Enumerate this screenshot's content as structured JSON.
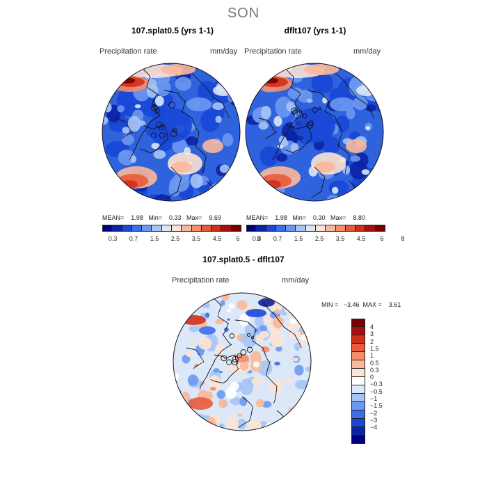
{
  "title": "SON",
  "colors": {
    "precip_scale": [
      "#00007f",
      "#0b24a4",
      "#1a47d6",
      "#3b6ee8",
      "#6c98f0",
      "#a6c4f4",
      "#dce8f8",
      "#fde3d3",
      "#f9b89a",
      "#f58d6a",
      "#e85b3c",
      "#d0301a",
      "#a80f0f",
      "#7a0000"
    ],
    "diff_scale": [
      "#00007f",
      "#0b24a4",
      "#1a47d6",
      "#3b6ee8",
      "#6c98f0",
      "#a6c4f4",
      "#dce8f8",
      "#fde3d3",
      "#f9b89a",
      "#f58d6a",
      "#e85b3c",
      "#d0301a",
      "#a80f0f",
      "#7a0000"
    ]
  },
  "panels": [
    {
      "title": "107.splat0.5 (yrs 1-1)",
      "variable": "Precipitation rate",
      "units": "mm/day",
      "stats": "MEAN=    1.98   Min=    0.33   Max=    9.69"
    },
    {
      "title": "dflt107 (yrs 1-1)",
      "variable": "Precipitation rate",
      "units": "mm/day",
      "stats": "MEAN=    1.98   Min=    0.30   Max=    8.80"
    }
  ],
  "colorbar_labels": [
    "0.3",
    "0.7",
    "1.5",
    "2.5",
    "3.5",
    "4.5",
    "6",
    "8"
  ],
  "difference": {
    "title": "107.splat0.5 - dflt107",
    "variable": "Precipitation rate",
    "units": "mm/day",
    "stats": "MIN =   −3.46  MAX =    3.61",
    "colorbar_labels": [
      "4",
      "3",
      "2",
      "1.5",
      "1",
      "0.5",
      "0.3",
      "0",
      "−0.3",
      "−0.5",
      "−1",
      "−1.5",
      "−2",
      "−3",
      "−4"
    ]
  }
}
